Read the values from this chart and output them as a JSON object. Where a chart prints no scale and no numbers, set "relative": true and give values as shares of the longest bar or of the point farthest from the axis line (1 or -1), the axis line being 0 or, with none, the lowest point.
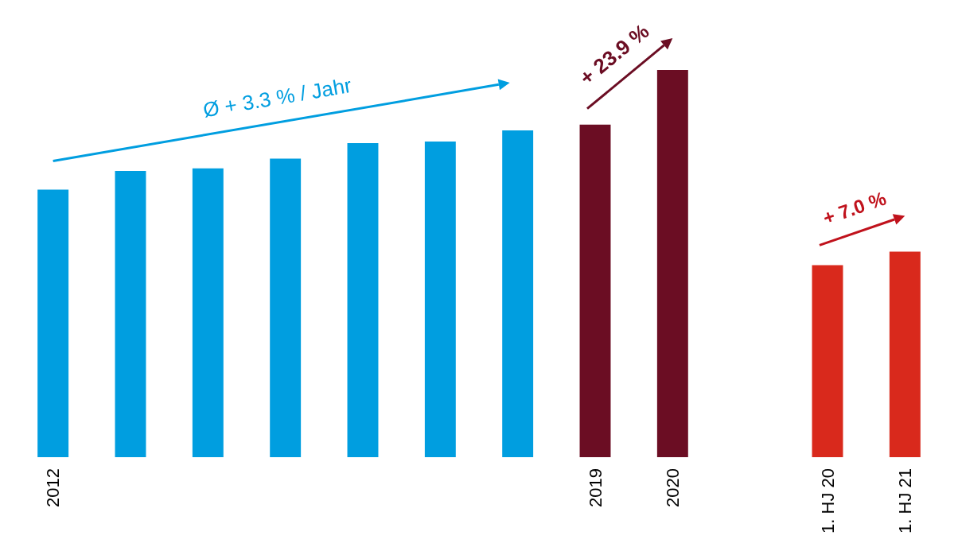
{
  "chart_data": {
    "type": "bar",
    "relative": true,
    "categories": [
      "2012",
      null,
      null,
      null,
      null,
      null,
      null,
      "2019",
      "2020",
      null,
      "1. HJ 20",
      "1. HJ 21"
    ],
    "values": [
      0.691,
      0.739,
      0.746,
      0.771,
      0.811,
      0.815,
      0.844,
      0.859,
      1,
      null,
      0.496,
      0.531
    ],
    "colors": [
      "#009ee0",
      "#009ee0",
      "#009ee0",
      "#009ee0",
      "#009ee0",
      "#009ee0",
      "#009ee0",
      "#6b0d23",
      "#6b0d23",
      null,
      "#d9291c",
      "#d9291c"
    ],
    "annotations": [
      "Ø + 3.3 % / Jahr",
      "+ 23.9 %",
      "+ 7.0 %"
    ],
    "grid": false
  }
}
